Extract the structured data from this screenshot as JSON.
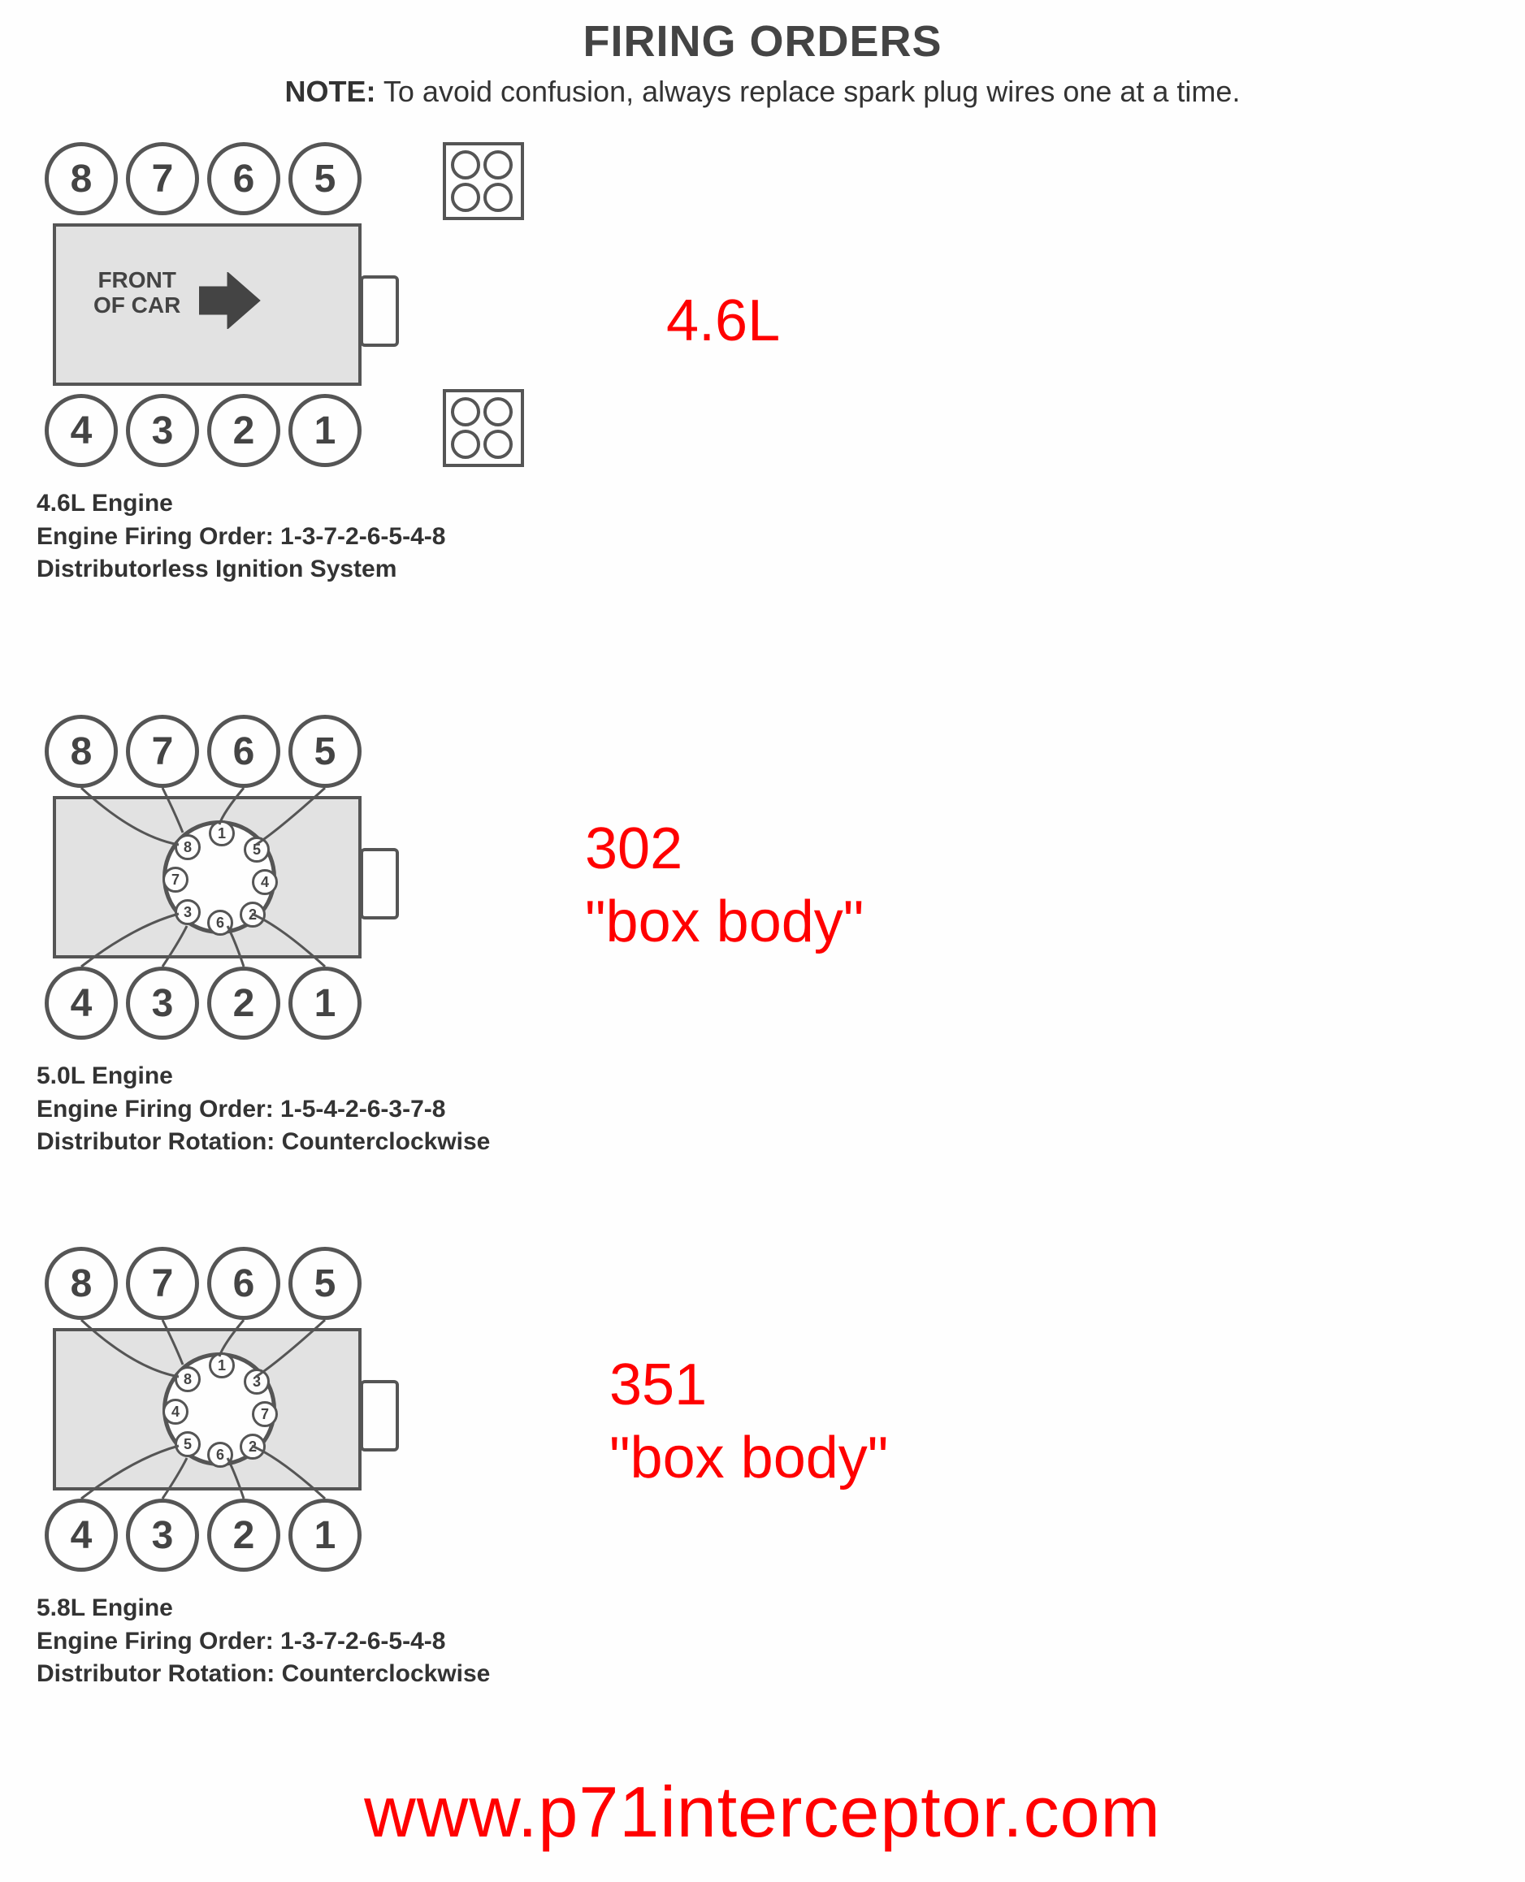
{
  "header": {
    "title": "FIRING ORDERS",
    "note_label": "NOTE:",
    "note_text": " To avoid confusion, always replace spark plug wires one at a time."
  },
  "colors": {
    "background": "#fefefe",
    "stroke": "#555555",
    "text_dark": "#333333",
    "accent_red": "#ff0000",
    "block_fill": "#e2e2e2"
  },
  "typography": {
    "title_fontsize": 54,
    "note_fontsize": 36,
    "caption_fontsize": 30,
    "red_label_fontsize": 72,
    "footer_fontsize": 88,
    "cylinder_number_fontsize": 48
  },
  "engines": [
    {
      "type": "distributorless",
      "top_cylinders": [
        "8",
        "7",
        "6",
        "5"
      ],
      "bottom_cylinders": [
        "4",
        "3",
        "2",
        "1"
      ],
      "front_line1": "FRONT",
      "front_line2": "OF CAR",
      "coil_packs": true,
      "caption_line1": "4.6L Engine",
      "caption_line2": "Engine Firing Order: 1-3-7-2-6-5-4-8",
      "caption_line3": "Distributorless Ignition System",
      "red_label": "4.6L"
    },
    {
      "type": "distributor",
      "top_cylinders": [
        "8",
        "7",
        "6",
        "5"
      ],
      "bottom_cylinders": [
        "4",
        "3",
        "2",
        "1"
      ],
      "distributor_terminals": [
        "1",
        "5",
        "4",
        "2",
        "6",
        "3",
        "7",
        "8"
      ],
      "caption_line1": "5.0L Engine",
      "caption_line2": "Engine Firing Order: 1-5-4-2-6-3-7-8",
      "caption_line3": "Distributor Rotation: Counterclockwise",
      "red_label": "302\n\"box body\""
    },
    {
      "type": "distributor",
      "top_cylinders": [
        "8",
        "7",
        "6",
        "5"
      ],
      "bottom_cylinders": [
        "4",
        "3",
        "2",
        "1"
      ],
      "distributor_terminals": [
        "1",
        "3",
        "7",
        "2",
        "6",
        "5",
        "4",
        "8"
      ],
      "caption_line1": "5.8L Engine",
      "caption_line2": "Engine Firing Order: 1-3-7-2-6-5-4-8",
      "caption_line3": "Distributor Rotation: Counterclockwise",
      "red_label": "351\n\"box body\""
    }
  ],
  "footer": {
    "url": "www.p71interceptor.com"
  },
  "diagram_geometry": {
    "cylinder_diameter": 90,
    "cylinder_stroke_width": 5,
    "block_width": 380,
    "block_height": 200,
    "distributor_diameter": 140,
    "terminal_diameter": 32,
    "wire_stroke_width": 3
  }
}
